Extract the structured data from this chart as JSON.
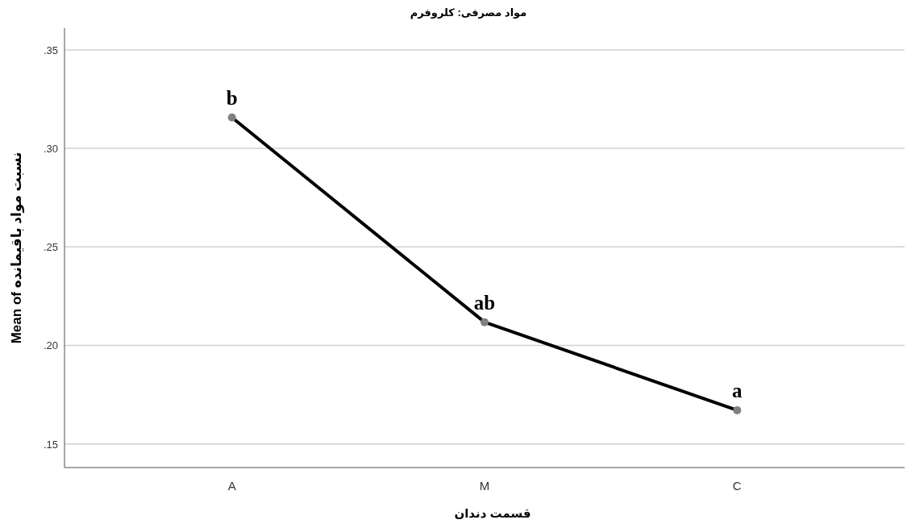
{
  "chart_data": {
    "type": "line",
    "title": "مواد مصرفی: کلروفرم",
    "xlabel": "قسمت دندان",
    "ylabel": "Mean of نسبت مواد باقیمانده",
    "categories": [
      "A",
      "M",
      "C"
    ],
    "series": [
      {
        "color": "#000000",
        "values": [
          0.3157,
          0.2118,
          0.1671
        ]
      }
    ],
    "marker": "circle",
    "grid": "y",
    "ylim": [
      0.138,
      0.361
    ],
    "yticks": [
      {
        "value": 0.15,
        "label": ".15"
      },
      {
        "value": 0.2,
        "label": ".20"
      },
      {
        "value": 0.25,
        "label": ".25"
      },
      {
        "value": 0.3,
        "label": ".30"
      },
      {
        "value": 0.35,
        "label": ".35"
      }
    ],
    "annotations": [
      {
        "text": "b",
        "x": "A",
        "y": 0.3157
      },
      {
        "text": "ab",
        "x": "M",
        "y": 0.2118
      },
      {
        "text": "a",
        "x": "C",
        "y": 0.1671
      }
    ]
  }
}
